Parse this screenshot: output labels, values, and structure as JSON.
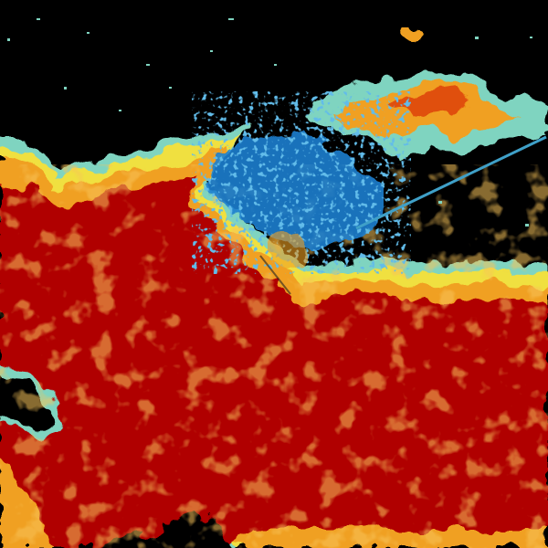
{
  "radar": {
    "palette": {
      "background": "#000000",
      "very_light": "#7fd4c0",
      "light": "#1e7fd0",
      "light_moderate": "#f0e040",
      "moderate": "#f0a020",
      "heavy": "#e05010",
      "very_heavy": "#b00000"
    }
  }
}
